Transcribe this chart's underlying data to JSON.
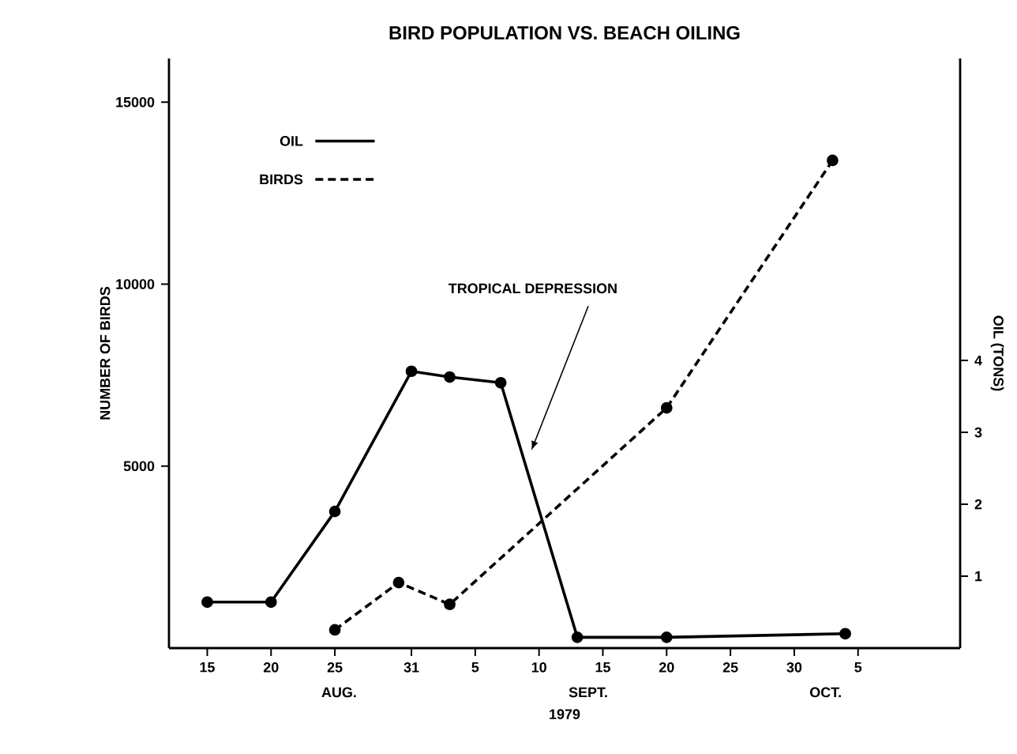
{
  "chart_data": {
    "type": "line",
    "title": "BIRD POPULATION VS. BEACH OILING",
    "xlabel": "1979",
    "ylabel": "NUMBER OF BIRDS",
    "y2label": "OIL (TONS)",
    "xlim": [
      "1979-08-12",
      "1979-10-13"
    ],
    "xticks": [
      {
        "value": "1979-08-15",
        "label": "15"
      },
      {
        "value": "1979-08-20",
        "label": "20"
      },
      {
        "value": "1979-08-25",
        "label": "25"
      },
      {
        "value": "1979-08-31",
        "label": "31"
      },
      {
        "value": "1979-09-05",
        "label": "5"
      },
      {
        "value": "1979-09-10",
        "label": "10"
      },
      {
        "value": "1979-09-15",
        "label": "15"
      },
      {
        "value": "1979-09-20",
        "label": "20"
      },
      {
        "value": "1979-09-25",
        "label": "25"
      },
      {
        "value": "1979-09-30",
        "label": "30"
      },
      {
        "value": "1979-10-05",
        "label": "5"
      }
    ],
    "ylim": [
      0,
      16200
    ],
    "yticks": [
      5000,
      10000,
      15000
    ],
    "y2lim": [
      0,
      8.2
    ],
    "y2ticks": [
      1,
      2,
      3,
      4
    ],
    "series": [
      {
        "name": "OIL",
        "color": "#000000",
        "axis": "y2",
        "line_style": "solid",
        "x": [
          "1979-08-15",
          "1979-08-20",
          "1979-08-25",
          "1979-08-31",
          "1979-09-03",
          "1979-09-07",
          "1979-09-13",
          "1979-09-20",
          "1979-10-04"
        ],
        "values": [
          0.64,
          0.64,
          1.9,
          3.85,
          3.77,
          3.69,
          0.15,
          0.15,
          0.2
        ]
      },
      {
        "name": "BIRDS",
        "color": "#000000",
        "line_style": "dashed",
        "x": [
          "1979-08-25",
          "1979-08-30",
          "1979-09-03",
          "1979-09-20",
          "1979-10-03"
        ],
        "values": [
          500,
          1800,
          1200,
          6600,
          13400
        ]
      }
    ],
    "marker": "circle",
    "legend": "top left",
    "grid": false,
    "annotations": [
      "AUG.",
      "SEPT.",
      "OCT.",
      "TROPICAL DEPRESSION"
    ]
  }
}
